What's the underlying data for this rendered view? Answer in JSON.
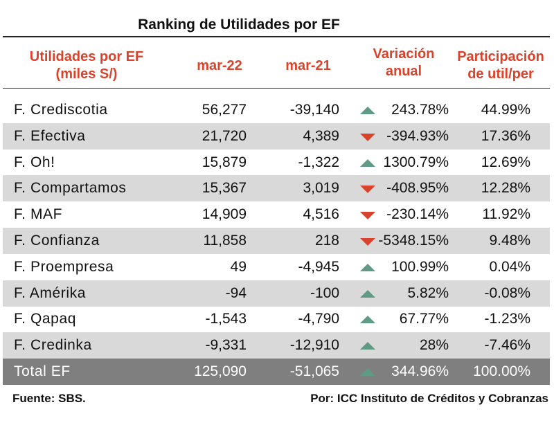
{
  "title": "Ranking de Utilidades por EF",
  "headers": {
    "col1": "Utilidades por EF\n(miles S/)",
    "col2": "mar-22",
    "col3": "mar-21",
    "col4": "Variación\nanual",
    "col5": "Participación\nde util/per"
  },
  "colors": {
    "header": "#d9432b",
    "up_arrow": "#5f9a84",
    "down_arrow": "#d9432b",
    "shade": "#d9d9d9",
    "total": "#7f7f7f"
  },
  "rows": [
    {
      "name": "F. Crediscotia",
      "mar22": "56,277",
      "mar21": "-39,140",
      "trend": "up",
      "var": "243.78%",
      "part": "44.99%"
    },
    {
      "name": "F. Efectiva",
      "mar22": "21,720",
      "mar21": "4,389",
      "trend": "down",
      "var": "-394.93%",
      "part": "17.36%"
    },
    {
      "name": "F. Oh!",
      "mar22": "15,879",
      "mar21": "-1,322",
      "trend": "up",
      "var": "1300.79%",
      "part": "12.69%"
    },
    {
      "name": "F. Compartamos",
      "mar22": "15,367",
      "mar21": "3,019",
      "trend": "down",
      "var": "-408.95%",
      "part": "12.28%"
    },
    {
      "name": "F. MAF",
      "mar22": "14,909",
      "mar21": "4,516",
      "trend": "down",
      "var": "-230.14%",
      "part": "11.92%"
    },
    {
      "name": "F. Confianza",
      "mar22": "11,858",
      "mar21": "218",
      "trend": "down",
      "var": "-5348.15%",
      "part": "9.48%"
    },
    {
      "name": "F. Proempresa",
      "mar22": "49",
      "mar21": "-4,945",
      "trend": "up",
      "var": "100.99%",
      "part": "0.04%"
    },
    {
      "name": "F. Amérika",
      "mar22": "-94",
      "mar21": "-100",
      "trend": "up",
      "var": "5.82%",
      "part": "-0.08%"
    },
    {
      "name": "F. Qapaq",
      "mar22": "-1,543",
      "mar21": "-4,790",
      "trend": "up",
      "var": "67.77%",
      "part": "-1.23%"
    },
    {
      "name": "F. Credinka",
      "mar22": "-9,331",
      "mar21": "-12,910",
      "trend": "up",
      "var": "28%",
      "part": "-7.46%"
    }
  ],
  "total": {
    "name": "Total EF",
    "mar22": "125,090",
    "mar21": "-51,065",
    "trend": "up",
    "var": "344.96%",
    "part": "100.00%"
  },
  "footer": {
    "source": "Fuente: SBS.",
    "author": "Por: ICC Instituto de Créditos y Cobranzas"
  }
}
